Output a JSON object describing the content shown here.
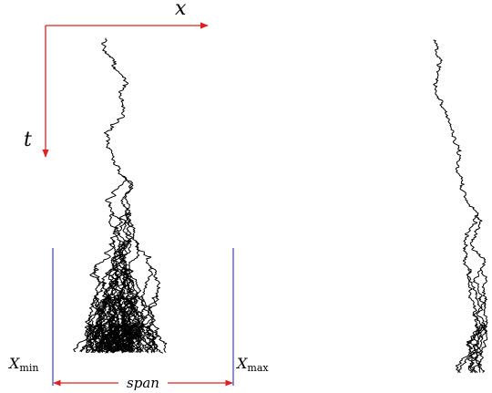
{
  "axes": {
    "x_label": "x",
    "t_label": "t",
    "axis_color": "#e0201e"
  },
  "bounds": {
    "min_base": "X",
    "min_sub": "min",
    "max_base": "X",
    "max_sub": "max",
    "span_label": "span",
    "line_color": "#2a2ad0",
    "span_arrow_color": "#e0201e"
  },
  "paths": {
    "color": "#000000"
  }
}
